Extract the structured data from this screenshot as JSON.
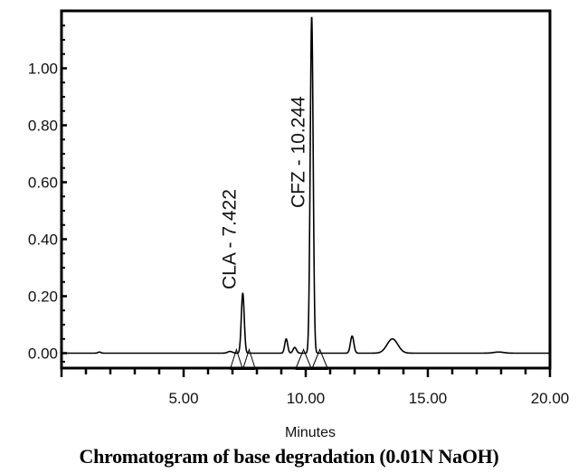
{
  "caption": "Chromatogram of base degradation (0.01N NaOH)",
  "chart_data": {
    "type": "line",
    "xlabel": "Minutes",
    "ylabel": "",
    "xlim": [
      0,
      20
    ],
    "ylim": [
      -0.05,
      1.15
    ],
    "x_ticks": [
      5.0,
      10.0,
      15.0,
      20.0
    ],
    "x_tick_labels": [
      "5.00",
      "10.00",
      "15.00",
      "20.00"
    ],
    "y_ticks": [
      0.0,
      0.2,
      0.4,
      0.6,
      0.8,
      1.0
    ],
    "y_tick_labels": [
      "0.00",
      "0.20",
      "0.40",
      "0.60",
      "0.80",
      "1.00"
    ],
    "grid": false,
    "peaks": [
      {
        "label": "CLA - 7.422",
        "rt": 7.422,
        "height": 0.21,
        "width": 0.06
      },
      {
        "label": "CFZ - 10.244",
        "rt": 10.244,
        "height": 1.18,
        "width": 0.06
      }
    ],
    "minor_peaks": [
      {
        "rt": 1.55,
        "height": 0.004,
        "width": 0.06
      },
      {
        "rt": 6.9,
        "height": 0.006,
        "width": 0.1
      },
      {
        "rt": 9.2,
        "height": 0.05,
        "width": 0.06
      },
      {
        "rt": 9.55,
        "height": 0.02,
        "width": 0.07
      },
      {
        "rt": 11.9,
        "height": 0.06,
        "width": 0.07
      },
      {
        "rt": 13.55,
        "height": 0.05,
        "width": 0.22
      },
      {
        "rt": 17.9,
        "height": 0.004,
        "width": 0.2
      }
    ],
    "baseline": [
      [
        0,
        0.0
      ],
      [
        20,
        0.0
      ]
    ]
  }
}
